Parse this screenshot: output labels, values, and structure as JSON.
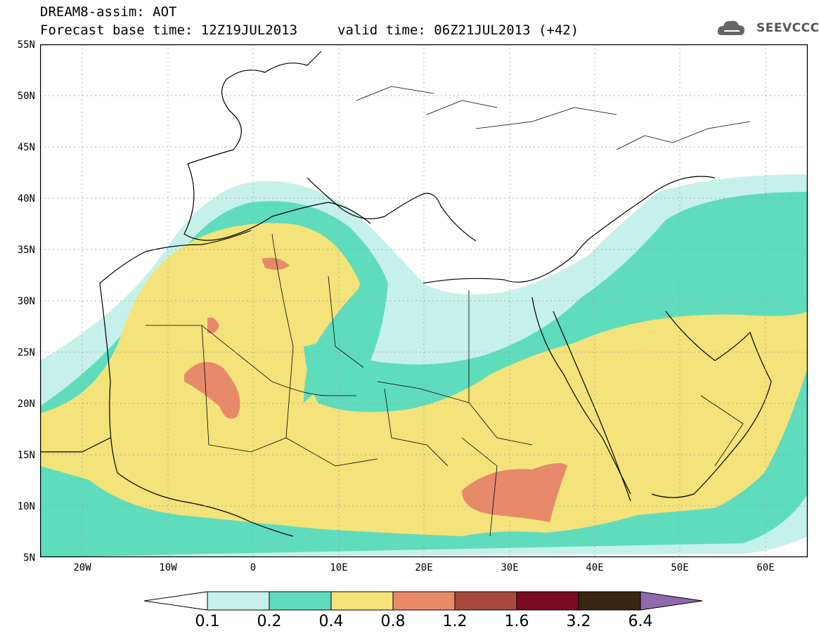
{
  "title": {
    "line1": "DREAM8-assim: AOT",
    "line2": "Forecast base time: 12Z19JUL2013",
    "valid": "valid time: 06Z21JUL2013 (+42)"
  },
  "logo": {
    "text": "SEEVCCC",
    "icon": "cloud-icon"
  },
  "map": {
    "lat_labels": [
      "55N",
      "50N",
      "45N",
      "40N",
      "35N",
      "30N",
      "25N",
      "20N",
      "15N",
      "10N",
      "5N"
    ],
    "lon_labels": [
      "20W",
      "10W",
      "0",
      "10E",
      "20E",
      "30E",
      "40E",
      "50E",
      "60E"
    ],
    "colors": {
      "c1": "#c6f1ea",
      "c2": "#5fdcbc",
      "c3": "#f3e37a",
      "c4": "#e78a6a",
      "c5": "#a8493a",
      "c6": "#7a0b24",
      "c7": "#3a2513",
      "c8": "#8e69ad"
    }
  },
  "colorbar": {
    "labels": [
      "0.1",
      "0.2",
      "0.4",
      "0.8",
      "1.2",
      "1.6",
      "3.2",
      "6.4"
    ]
  }
}
